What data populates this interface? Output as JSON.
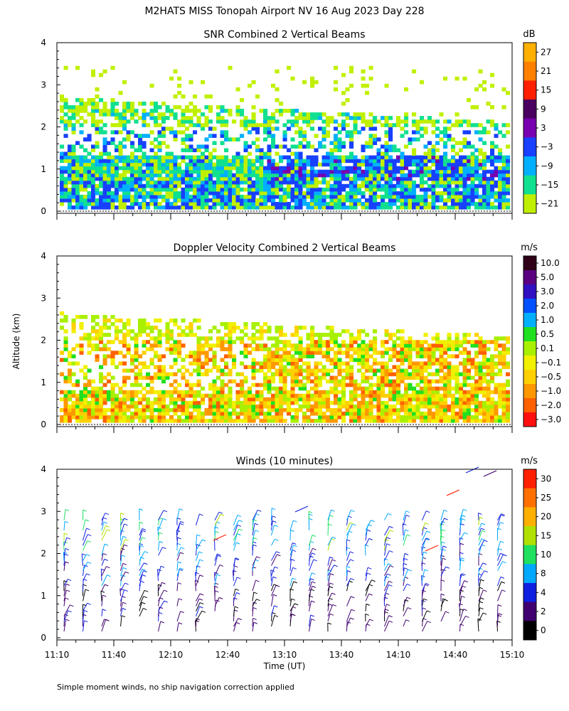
{
  "figure": {
    "title": "M2HATS MISS Tonopah Airport NV  16 Aug 2023 Day 228",
    "footnote": "Simple moment winds, no ship navigation correction applied",
    "shared_ylabel": "Altitude (km)",
    "xlabel": "Time (UT)"
  },
  "chart_data": [
    {
      "type": "heatmap",
      "title": "SNR Combined 2 Vertical Beams",
      "colorbar_unit": "dB",
      "colorbar_ticks": [
        "27",
        "21",
        "15",
        "9",
        "3",
        "−3",
        "−9",
        "−15",
        "−21"
      ],
      "colorbar_colors": [
        "#FFB000",
        "#FF8000",
        "#FF2000",
        "#4A0060",
        "#7800B0",
        "#1840FF",
        "#00B0FF",
        "#10E090",
        "#C0F000"
      ],
      "y_ticks": [
        "4",
        "3",
        "2",
        "1",
        "0"
      ],
      "ylim": [
        0,
        4
      ],
      "xlim": [
        "11:10",
        "15:10"
      ]
    },
    {
      "type": "heatmap",
      "title": "Doppler Velocity Combined 2 Vertical Beams",
      "colorbar_unit": "m/s",
      "colorbar_ticks": [
        "10.0",
        "5.0",
        "3.0",
        "2.0",
        "1.0",
        "0.5",
        "0.1",
        "−0.1",
        "−0.5",
        "−1.0",
        "−2.0",
        "−3.0"
      ],
      "colorbar_colors": [
        "#300018",
        "#5A0080",
        "#3010C0",
        "#0050FF",
        "#00B0FF",
        "#20E020",
        "#A8F000",
        "#F0F000",
        "#FFD000",
        "#FF9800",
        "#FF6000",
        "#FF1010"
      ],
      "y_ticks": [
        "4",
        "3",
        "2",
        "1",
        "0"
      ],
      "ylim": [
        0,
        4
      ],
      "xlim": [
        "11:10",
        "15:10"
      ]
    },
    {
      "type": "wind_barbs",
      "title": "Winds (10 minutes)",
      "colorbar_unit": "m/s",
      "colorbar_ticks": [
        "30",
        "25",
        "20",
        "15",
        "10",
        "8",
        "4",
        "2",
        "0"
      ],
      "colorbar_colors": [
        "#FF2000",
        "#FF7000",
        "#FFB000",
        "#B0E000",
        "#20E060",
        "#00A8FF",
        "#1020E0",
        "#400070",
        "#000000"
      ],
      "y_ticks": [
        "4",
        "3",
        "2",
        "1",
        "0"
      ],
      "ylim": [
        0,
        4
      ],
      "x_ticks": [
        "11:10",
        "11:40",
        "12:10",
        "12:40",
        "13:10",
        "13:40",
        "14:10",
        "14:40",
        "15:10"
      ],
      "xlim": [
        "11:10",
        "15:10"
      ]
    }
  ]
}
